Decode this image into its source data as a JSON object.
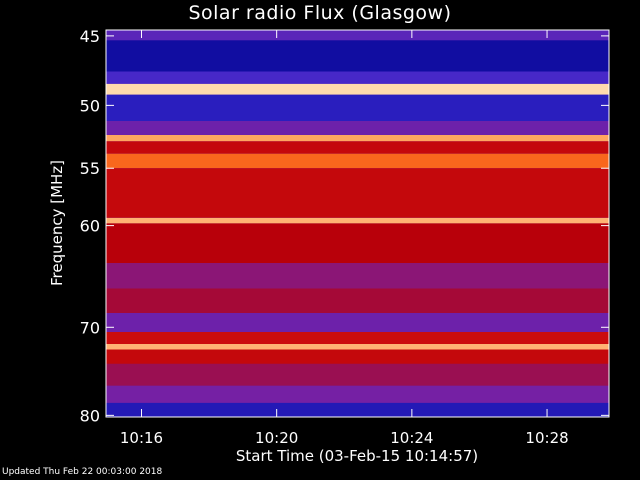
{
  "chart_data": {
    "type": "heatmap",
    "title": "Solar radio Flux (Glasgow)",
    "xlabel": "Start Time (03-Feb-15 10:14:57)",
    "ylabel": "Frequency [MHz]",
    "x_ticks": [
      "10:16",
      "10:20",
      "10:24",
      "10:28"
    ],
    "y_ticks": [
      45,
      50,
      55,
      60,
      70,
      80
    ],
    "y_scale": "log",
    "ylim": [
      44.6,
      80.2
    ],
    "xlim": [
      "10:14:57",
      "10:29:50"
    ],
    "colormap": [
      "#00008c",
      "#3a2ad2",
      "#7a1fa0",
      "#b8000a",
      "#e01a10",
      "#ff7a20",
      "#ffe8c0"
    ],
    "bands_mhz": [
      {
        "from": 44.6,
        "to": 45.3,
        "level": 0.25
      },
      {
        "from": 45.3,
        "to": 47.5,
        "level": 0.05
      },
      {
        "from": 47.5,
        "to": 48.4,
        "level": 0.2
      },
      {
        "from": 48.4,
        "to": 49.2,
        "level": 0.98
      },
      {
        "from": 49.2,
        "to": 51.2,
        "level": 0.12
      },
      {
        "from": 51.2,
        "to": 52.3,
        "level": 0.3
      },
      {
        "from": 52.3,
        "to": 52.8,
        "level": 0.9
      },
      {
        "from": 52.8,
        "to": 53.8,
        "level": 0.55
      },
      {
        "from": 53.8,
        "to": 55.0,
        "level": 0.8
      },
      {
        "from": 55.0,
        "to": 59.3,
        "level": 0.55
      },
      {
        "from": 59.3,
        "to": 59.8,
        "level": 0.92
      },
      {
        "from": 59.8,
        "to": 63.5,
        "level": 0.5
      },
      {
        "from": 63.5,
        "to": 66.0,
        "level": 0.38
      },
      {
        "from": 66.0,
        "to": 68.5,
        "level": 0.45
      },
      {
        "from": 68.5,
        "to": 70.5,
        "level": 0.3
      },
      {
        "from": 70.5,
        "to": 71.8,
        "level": 0.58
      },
      {
        "from": 71.8,
        "to": 72.4,
        "level": 0.92
      },
      {
        "from": 72.4,
        "to": 74.0,
        "level": 0.55
      },
      {
        "from": 74.0,
        "to": 76.5,
        "level": 0.42
      },
      {
        "from": 76.5,
        "to": 78.5,
        "level": 0.32
      },
      {
        "from": 78.5,
        "to": 80.2,
        "level": 0.1
      }
    ]
  },
  "footer": "Updated Thu Feb 22 00:03:00 2018"
}
